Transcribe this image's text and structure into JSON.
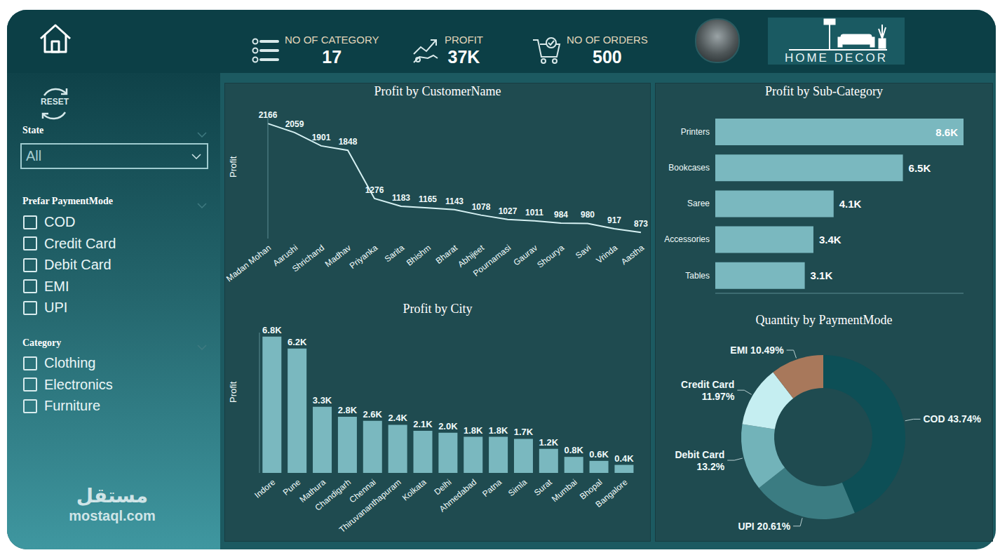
{
  "header": {
    "kpis": [
      {
        "label": "NO OF CATEGORY",
        "value": 17
      },
      {
        "label": "PROFIT",
        "value": 37000,
        "value_label": "37K"
      },
      {
        "label": "NO OF ORDERS",
        "value": 500
      }
    ],
    "logo": "HOME DECOR"
  },
  "filters": {
    "reset": "RESET",
    "state": {
      "label": "State",
      "selected": "All"
    },
    "payment_mode": {
      "label": "Prefar PaymentMode",
      "options": [
        "COD",
        "Credit Card",
        "Debit Card",
        "EMI",
        "UPI"
      ]
    },
    "category": {
      "label": "Category",
      "options": [
        "Clothing",
        "Electronics",
        "Furniture"
      ]
    }
  },
  "watermark": {
    "arabic": "مستقل",
    "text": "mostaql.com"
  },
  "chart_data": [
    {
      "type": "line",
      "title": "Profit by CustomerName",
      "y_label": "Profit",
      "categories": [
        "Madan Mohan",
        "Aarushi",
        "Shrichand",
        "Madhav",
        "Priyanka",
        "Sarita",
        "Bhishm",
        "Bharat",
        "Abhijeet",
        "Pournamasi",
        "Gaurav",
        "Shourya",
        "Savi",
        "Vrinda",
        "Aastha"
      ],
      "values": [
        2166,
        2059,
        1901,
        1848,
        1276,
        1183,
        1165,
        1143,
        1078,
        1027,
        1011,
        984,
        980,
        917,
        873
      ],
      "ylim": [
        800,
        2250
      ],
      "data_labels": true,
      "tick_labels": "x",
      "color": "#d6f1f3"
    },
    {
      "type": "bar",
      "title": "Profit by City",
      "y_label": "Profit",
      "categories": [
        "Indore",
        "Pune",
        "Mathura",
        "Chandigarh",
        "Chennai",
        "Thiruvananthapuram",
        "Kolkata",
        "Delhi",
        "Ahmedabad",
        "Patna",
        "Simla",
        "Surat",
        "Mumbai",
        "Bhopal",
        "Bangalore"
      ],
      "values": [
        6800,
        6200,
        3300,
        2800,
        2600,
        2400,
        2100,
        2000,
        1800,
        1800,
        1700,
        1200,
        800,
        600,
        400
      ],
      "value_labels": [
        "6.8K",
        "6.2K",
        "3.3K",
        "2.8K",
        "2.6K",
        "2.4K",
        "2.1K",
        "2.0K",
        "1.8K",
        "1.8K",
        "1.7K",
        "1.2K",
        "0.8K",
        "0.6K",
        "0.4K"
      ],
      "ylim": [
        0,
        7000
      ],
      "data_labels": true,
      "tick_labels": "x",
      "color": "#7ab8bf"
    },
    {
      "type": "bar",
      "orientation": "horizontal",
      "title": "Profit by Sub-Category",
      "categories": [
        "Printers",
        "Bookcases",
        "Saree",
        "Accessories",
        "Tables"
      ],
      "values": [
        8600,
        6500,
        4100,
        3400,
        3100
      ],
      "value_labels": [
        "8.6K",
        "6.5K",
        "4.1K",
        "3.4K",
        "3.1K"
      ],
      "xlim": [
        0,
        8600
      ],
      "data_labels": true,
      "tick_labels": "y",
      "color": "#7ab8bf"
    },
    {
      "type": "pie",
      "title": "Quantity by PaymentMode",
      "categories": [
        "COD",
        "UPI",
        "Debit Card",
        "Credit Card",
        "EMI"
      ],
      "values": [
        43.74,
        20.61,
        13.2,
        11.97,
        10.49
      ],
      "value_labels": [
        "43.74%",
        "20.61%",
        "13.2%",
        "11.97%",
        "10.49%"
      ],
      "colors": [
        "#0d4f56",
        "#3b7c82",
        "#72b3b9",
        "#c5eef1",
        "#a8785b"
      ],
      "data_labels": true
    }
  ]
}
